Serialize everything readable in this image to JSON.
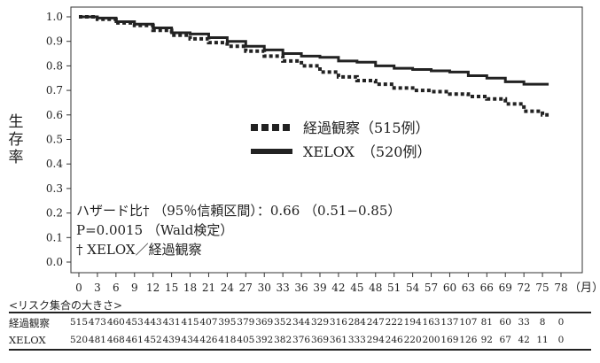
{
  "chart_data": {
    "type": "line",
    "title": "",
    "xlabel": "",
    "x_unit": "（月）",
    "ylabel": "生存率",
    "xlim": [
      0,
      78
    ],
    "ylim": [
      0,
      1.0
    ],
    "x_ticks": [
      0,
      3,
      6,
      9,
      12,
      15,
      18,
      21,
      24,
      27,
      30,
      33,
      36,
      39,
      42,
      45,
      48,
      51,
      54,
      57,
      60,
      63,
      66,
      69,
      72,
      75,
      78
    ],
    "y_ticks": [
      "0.0",
      "0.1",
      "0.2",
      "0.3",
      "0.4",
      "0.5",
      "0.6",
      "0.7",
      "0.8",
      "0.9",
      "1.0"
    ],
    "grid": false,
    "legend_position": "center",
    "series": [
      {
        "name": "経過観察（515例）",
        "style": "dotted",
        "x": [
          0,
          3,
          6,
          9,
          12,
          15,
          18,
          21,
          24,
          27,
          30,
          33,
          36,
          39,
          42,
          45,
          48,
          51,
          54,
          57,
          60,
          63,
          66,
          69,
          72,
          75,
          76
        ],
        "y": [
          1.0,
          0.99,
          0.975,
          0.965,
          0.945,
          0.925,
          0.91,
          0.895,
          0.88,
          0.86,
          0.84,
          0.82,
          0.8,
          0.775,
          0.755,
          0.74,
          0.725,
          0.71,
          0.7,
          0.695,
          0.685,
          0.675,
          0.665,
          0.645,
          0.615,
          0.6,
          0.6
        ]
      },
      {
        "name": "XELOX　（520例）",
        "style": "solid",
        "x": [
          0,
          3,
          6,
          9,
          12,
          15,
          18,
          21,
          24,
          27,
          30,
          33,
          36,
          39,
          42,
          45,
          48,
          51,
          54,
          57,
          60,
          63,
          66,
          69,
          72,
          75,
          76
        ],
        "y": [
          1.0,
          0.995,
          0.98,
          0.97,
          0.955,
          0.935,
          0.93,
          0.915,
          0.9,
          0.88,
          0.865,
          0.85,
          0.84,
          0.835,
          0.82,
          0.815,
          0.8,
          0.79,
          0.785,
          0.78,
          0.775,
          0.76,
          0.75,
          0.735,
          0.725,
          0.725,
          0.725
        ]
      }
    ],
    "annotations": [
      "ハザード比† （95％信頼区間）：0.66 （0.51−0.85）",
      "P=0.0015 （Wald検定）",
      "† XELOX／経過観察"
    ]
  },
  "risk_table": {
    "caption": "<リスク集合の大きさ>",
    "rows": [
      {
        "label": "経過観察",
        "values": [
          "515",
          "473",
          "460",
          "453",
          "443",
          "431",
          "415",
          "407",
          "395",
          "379",
          "369",
          "352",
          "344",
          "329",
          "316",
          "284",
          "247",
          "222",
          "194",
          "163",
          "137",
          "107",
          "81",
          "60",
          "33",
          "8",
          "0"
        ]
      },
      {
        "label": "XELOX",
        "values": [
          "520",
          "481",
          "468",
          "461",
          "452",
          "439",
          "434",
          "426",
          "418",
          "405",
          "392",
          "382",
          "376",
          "369",
          "361",
          "333",
          "294",
          "246",
          "220",
          "200",
          "169",
          "126",
          "92",
          "67",
          "42",
          "11",
          "0"
        ]
      }
    ]
  },
  "colors": {
    "line": "#222222",
    "background": "#ffffff"
  }
}
